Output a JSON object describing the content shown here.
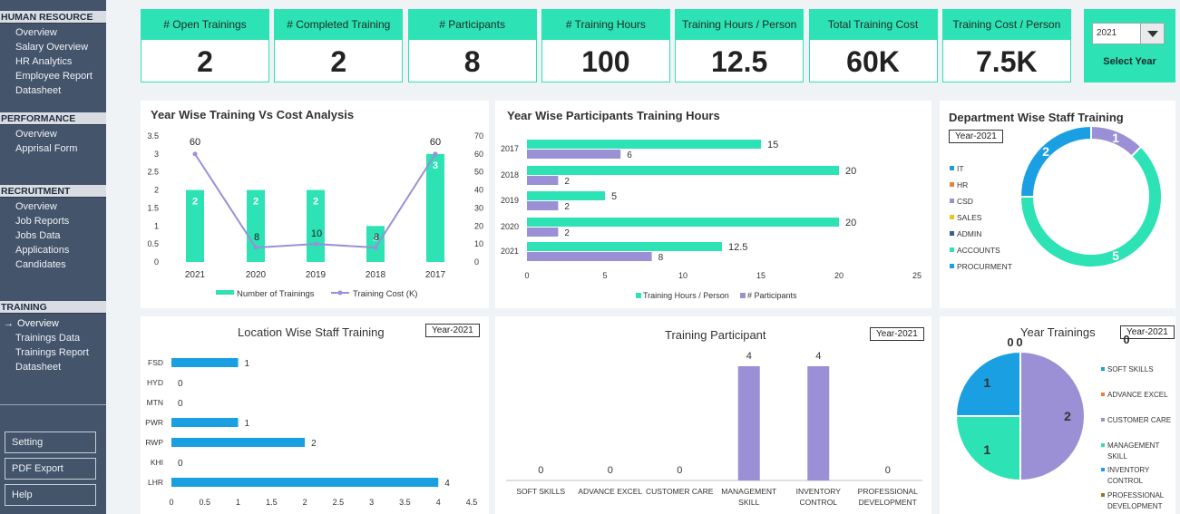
{
  "sidebar": {
    "sections": [
      {
        "title": "HUMAN RESOURCE",
        "items": [
          "Overview",
          "Salary Overview",
          "HR Analytics",
          "Employee Report",
          "Datasheet"
        ]
      },
      {
        "title": "PERFORMANCE",
        "items": [
          "Overview",
          "Apprisal Form"
        ]
      },
      {
        "title": "RECRUITMENT",
        "items": [
          "Overview",
          "Job Reports",
          "Jobs Data",
          "Applications",
          "Candidates"
        ]
      },
      {
        "title": "TRAINING",
        "items": [
          "Overview",
          "Trainings Data",
          "Trainings Report",
          "Datasheet"
        ]
      }
    ],
    "active_marker": "→",
    "buttons": [
      "Setting",
      "PDF Export",
      "Help"
    ]
  },
  "kpis": [
    {
      "label": "# Open Trainings",
      "value": "2"
    },
    {
      "label": "# Completed Training",
      "value": "2"
    },
    {
      "label": "# Participants",
      "value": "8"
    },
    {
      "label": "# Training Hours",
      "value": "100"
    },
    {
      "label": "Training Hours / Person",
      "value": "12.5"
    },
    {
      "label": "Total Training Cost",
      "value": "60K"
    },
    {
      "label": "Training Cost / Person",
      "value": "7.5K"
    }
  ],
  "year_selector": {
    "value": "2021",
    "label": "Select Year"
  },
  "year_tag": "Year-2021",
  "chart_data": [
    {
      "id": "year-wise-cost",
      "type": "bar",
      "title": "Year Wise Training Vs Cost Analysis",
      "categories": [
        "2021",
        "2020",
        "2019",
        "2018",
        "2017"
      ],
      "series": [
        {
          "name": "Number of Trainings",
          "values": [
            2,
            2,
            2,
            1,
            3
          ],
          "color": "#2de2b4",
          "axis": "left"
        },
        {
          "name": "Training Cost (K)",
          "values": [
            60,
            8,
            10,
            8,
            60
          ],
          "color": "#9b8fd6",
          "axis": "right",
          "render": "line"
        }
      ],
      "ylim": [
        0,
        3.5
      ],
      "y2lim": [
        0,
        70
      ],
      "yticks": [
        "0",
        "0.5",
        "1",
        "1.5",
        "2",
        "2.5",
        "3",
        "3.5"
      ],
      "y2ticks": [
        "0",
        "10",
        "20",
        "30",
        "40",
        "50",
        "60",
        "70"
      ],
      "legend": "bottom"
    },
    {
      "id": "participants-hours",
      "type": "bar",
      "orientation": "horizontal",
      "title": "Year Wise Participants Training Hours",
      "categories": [
        "2017",
        "2018",
        "2019",
        "2020",
        "2021"
      ],
      "series": [
        {
          "name": "Training Hours / Person",
          "values": [
            15,
            20,
            5,
            20,
            12.5
          ],
          "color": "#2de2b4"
        },
        {
          "name": "# Participants",
          "values": [
            6,
            2,
            2,
            2,
            8
          ],
          "color": "#9b8fd6"
        }
      ],
      "xlim": [
        0,
        25
      ],
      "xticks": [
        "0",
        "5",
        "10",
        "15",
        "20",
        "25"
      ],
      "legend": "bottom"
    },
    {
      "id": "department-staff",
      "type": "pie",
      "donut": true,
      "title": "Department Wise Staff Training",
      "categories": [
        "IT",
        "HR",
        "CSD",
        "SALES",
        "ADMIN",
        "ACCOUNTS",
        "PROCURMENT"
      ],
      "values": [
        0,
        0,
        1,
        0,
        0,
        5,
        2
      ],
      "colors": [
        "#1a9fd6",
        "#e8803a",
        "#9b8fd6",
        "#f2c21a",
        "#3a5f80",
        "#2de2b4",
        "#1a9fe3"
      ],
      "legend": "left"
    },
    {
      "id": "location-staff",
      "type": "bar",
      "orientation": "horizontal",
      "title": "Location Wise Staff Training",
      "categories": [
        "FSD",
        "HYD",
        "MTN",
        "PWR",
        "RWP",
        "KHI",
        "LHR"
      ],
      "values": [
        1,
        0,
        0,
        1,
        2,
        0,
        4
      ],
      "color": "#1a9fe3",
      "xlim": [
        0,
        4.5
      ],
      "xticks": [
        "0",
        "0.5",
        "1",
        "1.5",
        "2",
        "2.5",
        "3",
        "3.5",
        "4",
        "4.5"
      ]
    },
    {
      "id": "training-participant",
      "type": "bar",
      "title": "Training Participant",
      "categories": [
        "SOFT SKILLS",
        "ADVANCE EXCEL",
        "CUSTOMER CARE",
        "MANAGEMENT SKILL",
        "INVENTORY CONTROL",
        "PROFESSIONAL DEVELOPMENT"
      ],
      "values": [
        0,
        0,
        0,
        4,
        4,
        0
      ],
      "color": "#9b8fd6"
    },
    {
      "id": "year-trainings",
      "type": "pie",
      "title": "Year Trainings",
      "categories": [
        "SOFT SKILLS",
        "ADVANCE EXCEL",
        "CUSTOMER CARE",
        "MANAGEMENT SKILL",
        "INVENTORY CONTROL",
        "PROFESSIONAL DEVELOPMENT"
      ],
      "values": [
        0,
        0,
        2,
        1,
        1,
        0
      ],
      "colors": [
        "#1a9fd6",
        "#e8803a",
        "#9b8fd6",
        "#2de2b4",
        "#1a9fe3",
        "#8a7a2a"
      ],
      "legend": "right"
    }
  ]
}
